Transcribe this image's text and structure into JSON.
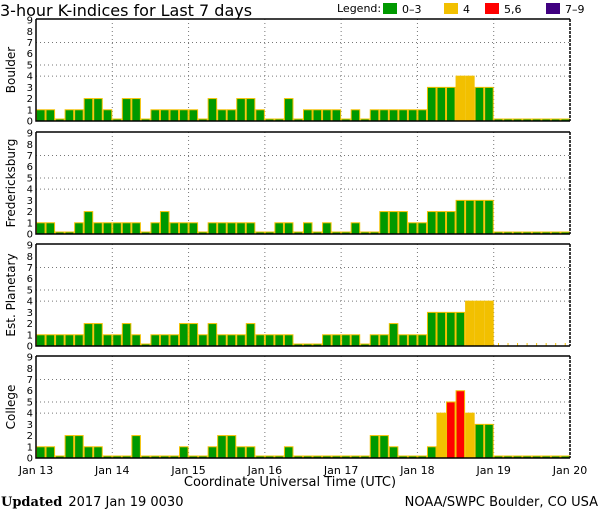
{
  "chart_data": {
    "type": "bar",
    "title": "3-hour K-indices for Last 7 days",
    "xlabel": "Coordinate Universal Time (UTC)",
    "ylabel": "",
    "ylim": [
      0,
      9
    ],
    "yticks": [
      "0",
      "1",
      "2",
      "3",
      "4",
      "5",
      "6",
      "7",
      "8",
      "9"
    ],
    "xticks": [
      "Jan 13",
      "Jan 14",
      "Jan 15",
      "Jan 16",
      "Jan 17",
      "Jan 18",
      "Jan 19",
      "Jan 20"
    ],
    "bars_per_day": 8,
    "legend": {
      "label": "Legend:",
      "entries": [
        {
          "label": "0–3",
          "color": "#009900"
        },
        {
          "label": "4",
          "color": "#f2c000"
        },
        {
          "label": "5,6",
          "color": "#ff0000"
        },
        {
          "label": "7–9",
          "color": "#400080"
        }
      ],
      "placement": "top-right"
    },
    "outline_color": "#f2c000",
    "series": [
      {
        "name": "Boulder",
        "values": [
          1,
          1,
          0,
          1,
          1,
          2,
          2,
          1,
          0,
          2,
          2,
          0,
          1,
          1,
          1,
          1,
          1,
          0,
          2,
          1,
          1,
          2,
          2,
          1,
          0,
          0,
          2,
          0,
          1,
          1,
          1,
          1,
          0,
          1,
          0,
          1,
          1,
          1,
          1,
          1,
          1,
          3,
          3,
          3,
          4,
          4,
          3,
          3,
          0,
          0,
          0,
          0,
          0,
          0,
          0,
          0
        ]
      },
      {
        "name": "Fredericksburg",
        "values": [
          1,
          1,
          0,
          0,
          1,
          2,
          1,
          1,
          1,
          1,
          1,
          0,
          1,
          2,
          1,
          1,
          1,
          0,
          1,
          1,
          1,
          1,
          1,
          0,
          0,
          1,
          1,
          0,
          1,
          0,
          1,
          0,
          0,
          1,
          0,
          0,
          2,
          2,
          2,
          1,
          1,
          2,
          2,
          2,
          3,
          3,
          3,
          3,
          0,
          0,
          0,
          0,
          0,
          0,
          0,
          0
        ]
      },
      {
        "name": "Est. Planetary",
        "values": [
          1,
          1,
          1,
          1,
          1,
          2,
          2,
          1,
          1,
          2,
          1,
          0,
          1,
          1,
          1,
          2,
          2,
          1,
          2,
          1,
          1,
          1,
          2,
          1,
          1,
          1,
          1,
          0,
          0,
          0,
          1,
          1,
          1,
          1,
          0,
          1,
          1,
          2,
          1,
          1,
          1,
          3,
          3,
          3,
          3,
          4,
          4,
          4,
          null,
          null,
          null,
          null,
          null,
          null,
          null,
          null
        ]
      },
      {
        "name": "College",
        "values": [
          1,
          1,
          0,
          2,
          2,
          1,
          1,
          0,
          0,
          0,
          2,
          0,
          0,
          0,
          0,
          1,
          0,
          0,
          1,
          2,
          2,
          1,
          1,
          0,
          0,
          0,
          1,
          0,
          0,
          0,
          0,
          0,
          0,
          0,
          0,
          2,
          2,
          1,
          0,
          0,
          0,
          1,
          4,
          5,
          6,
          4,
          3,
          3,
          0,
          0,
          0,
          0,
          0,
          0,
          0,
          0
        ]
      }
    ]
  },
  "footer": {
    "updated_label": "Updated",
    "updated_value": "2017 Jan 19 0030",
    "source": "NOAA/SWPC Boulder, CO USA"
  }
}
